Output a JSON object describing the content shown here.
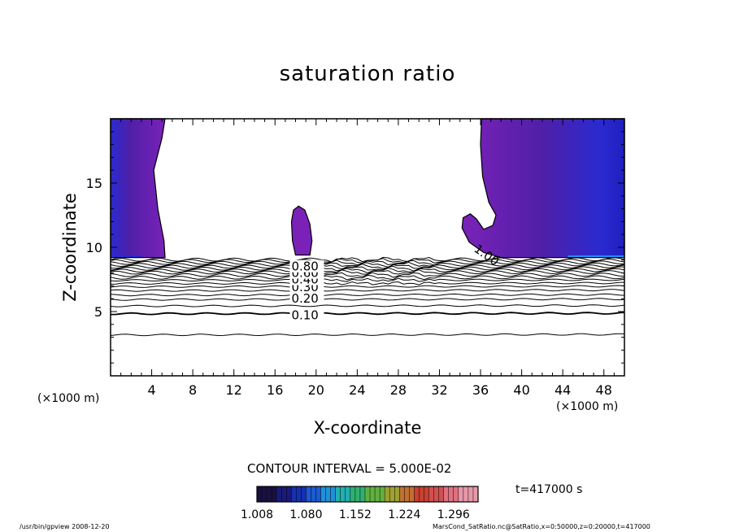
{
  "chart_data": {
    "type": "heatmap",
    "title": "saturation ratio",
    "xlabel": "X-coordinate",
    "ylabel": "Z-coordinate",
    "xunit": "(×1000 m)",
    "xlim": [
      0,
      50
    ],
    "ylim": [
      0,
      20
    ],
    "xticks": [
      4,
      8,
      12,
      16,
      20,
      24,
      28,
      32,
      36,
      40,
      44,
      48
    ],
    "yticks": [
      5,
      10,
      15
    ],
    "contour_interval": "CONTOUR INTERVAL = 5.000E-02",
    "contour_labels": [
      {
        "text": "0.10",
        "x": 17.6,
        "z": 4.7
      },
      {
        "text": "0.20",
        "x": 17.6,
        "z": 6.0
      },
      {
        "text": "0.30",
        "x": 17.6,
        "z": 6.9
      },
      {
        "text": "0.40",
        "x": 17.6,
        "z": 7.5
      },
      {
        "text": "0.60",
        "x": 17.6,
        "z": 8.0
      },
      {
        "text": "0.80",
        "x": 17.6,
        "z": 8.5
      },
      {
        "text": "1.00",
        "x": 35.5,
        "z": 10.0
      }
    ],
    "colorbar": {
      "tick_labels": [
        "1.008",
        "1.080",
        "1.152",
        "1.224",
        "1.296"
      ],
      "range": [
        1.008,
        1.332
      ]
    },
    "time": "t=417000 s",
    "colors": {
      "fill_main": "#7a22b8",
      "fill_dark": "#4f1fa8",
      "fill_deep": "#2a2ad0",
      "fill_high": "#1e90ff"
    }
  },
  "footer": {
    "left": "/usr/bin/gpview   2008-12-20",
    "right": "MarsCond_SatRatio.nc@SatRatio,x=0:50000,z=0:20000,t=417000"
  }
}
